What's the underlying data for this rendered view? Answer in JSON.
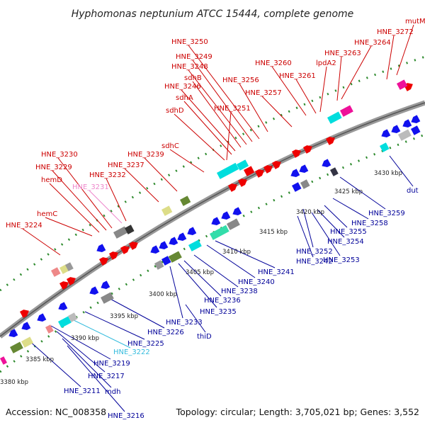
{
  "title": "Hyphomonas neptunium ATCC 15444, complete genome",
  "footer": {
    "accession": "Accession: NC_008358",
    "stats": "Topology: circular; Length: 3,705,021 bp; Genes: 3,552"
  },
  "colors": {
    "forward_label": "#cc0000",
    "reverse_label": "#000099",
    "backbone": "#999999",
    "cyan_label": "#33bbdd",
    "pink_label": "#ee88cc"
  },
  "kbp_ticks": [
    "3380 kbp",
    "3385 kbp",
    "3390 kbp",
    "3395 kbp",
    "3400 kbp",
    "3405 kbp",
    "3410 kbp",
    "3415 kbp",
    "3420 kbp",
    "3425 kbp",
    "3430 kbp"
  ],
  "forward_labels": [
    "HNE_3224",
    "hemC",
    "hemD",
    "HNE_3229",
    "HNE_3230",
    "HNE_3231",
    "HNE_3232",
    "HNE_3237",
    "HNE_3239",
    "sdhC",
    "sdhD",
    "sdhA",
    "HNE_3246",
    "sdhB",
    "HNE_3248",
    "HNE_3249",
    "HNE_3250",
    "HNE_3251",
    "HNE_3256",
    "HNE_3257",
    "HNE_3260",
    "HNE_3261",
    "lpdA2",
    "HNE_3263",
    "HNE_3264",
    "HNE_3272",
    "mutM"
  ],
  "reverse_labels": [
    "HNE_3211",
    "HNE_3216",
    "mdh",
    "HNE_3217",
    "HNE_3219",
    "HNE_3222",
    "HNE_3225",
    "HNE_3226",
    "thiD",
    "HNE_3233",
    "HNE_3235",
    "HNE_3236",
    "HNE_3238",
    "HNE_3240",
    "HNE_3241",
    "HNE_3242",
    "HNE_3252",
    "HNE_3253",
    "HNE_3254",
    "HNE_3255",
    "HNE_3258",
    "HNE_3259",
    "dut"
  ]
}
